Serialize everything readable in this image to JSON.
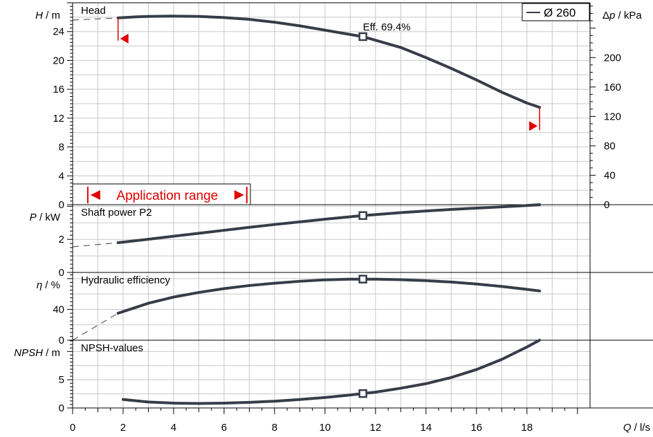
{
  "chart_data": {
    "type": "line",
    "x_axis": {
      "label_var": "Q",
      "label_unit": "l/s",
      "range": [
        0,
        20.5
      ],
      "ticks": [
        0,
        2,
        4,
        6,
        8,
        10,
        12,
        14,
        16,
        18
      ],
      "tick_labels": [
        "0",
        "2",
        "4",
        "6",
        "8",
        "10",
        "12",
        "14",
        "16",
        "18"
      ]
    },
    "legend": {
      "text": "Ø 260",
      "placement": "top-right"
    },
    "application_range": {
      "label": "Application range",
      "x_min": 0.6,
      "x_max": 6.9
    },
    "operating_point": {
      "q": 11.5,
      "annotation": "Eff.  69.4%"
    },
    "panels": [
      {
        "id": "head",
        "title": "Head",
        "ylabel_var": "H",
        "ylabel_unit": "m",
        "ylim": [
          0,
          28
        ],
        "yticks": [
          0,
          4,
          8,
          12,
          16,
          20,
          24
        ],
        "ytick_labels": [
          "0",
          "4",
          "8",
          "12",
          "16",
          "20",
          "24"
        ],
        "secondary_axis": {
          "label_var": "Δp",
          "label_unit": "kPa",
          "ticks_m": [
            0,
            4.08,
            8.16,
            12.24,
            16.32,
            20.39
          ],
          "tick_labels": [
            "0",
            "40",
            "80",
            "120",
            "160",
            "200"
          ]
        },
        "series": [
          {
            "x": [
              1.8,
              2.5,
              3,
              4,
              5,
              6,
              7,
              8,
              9,
              10,
              11,
              11.5,
              12,
              13,
              14,
              15,
              16,
              17,
              18,
              18.5
            ],
            "y": [
              25.9,
              26.05,
              26.1,
              26.15,
              26.1,
              25.95,
              25.7,
              25.3,
              24.8,
              24.2,
              23.6,
              23.3,
              22.8,
              21.8,
              20.4,
              18.9,
              17.3,
              15.6,
              14.1,
              13.5
            ]
          }
        ],
        "extension": {
          "x": [
            0,
            1.8
          ],
          "y": [
            25.6,
            25.9
          ]
        }
      },
      {
        "id": "power",
        "title": "Shaft power P2",
        "ylabel_var": "P",
        "ylabel_unit": "kW",
        "ylim": [
          0,
          4.1
        ],
        "yticks": [
          0,
          2
        ],
        "ytick_labels": [
          "0",
          "2"
        ],
        "series": [
          {
            "x": [
              1.8,
              3,
              4,
              5,
              6,
              7,
              8,
              9,
              10,
              11,
              11.5,
              12,
              13,
              14,
              15,
              16,
              17,
              18,
              18.5
            ],
            "y": [
              1.8,
              2.01,
              2.19,
              2.37,
              2.55,
              2.73,
              2.9,
              3.06,
              3.22,
              3.37,
              3.44,
              3.5,
              3.62,
              3.72,
              3.81,
              3.89,
              3.97,
              4.05,
              4.1
            ]
          }
        ],
        "extension": {
          "x": [
            0,
            1.8
          ],
          "y": [
            1.55,
            1.8
          ]
        }
      },
      {
        "id": "efficiency",
        "title": "Hydraulic efficiency",
        "ylabel_var": "η",
        "ylabel_unit": "%",
        "ylim": [
          0,
          88
        ],
        "yticks": [
          0,
          40
        ],
        "ytick_labels": [
          "0",
          "40"
        ],
        "series": [
          {
            "x": [
              1.8,
              3,
              4,
              5,
              6,
              7,
              8,
              9,
              10,
              11,
              11.5,
              12,
              13,
              14,
              15,
              16,
              17,
              18,
              18.5
            ],
            "y": [
              35,
              48,
              56,
              62,
              67,
              71,
              74,
              76.5,
              78.4,
              79.2,
              79.3,
              79.2,
              78.6,
              77.3,
              75.5,
              73,
              69.8,
              66,
              64
            ]
          }
        ],
        "extension": {
          "x": [
            0,
            1.8
          ],
          "y": [
            0,
            35
          ]
        }
      },
      {
        "id": "npsh",
        "title": "NPSH-values",
        "ylabel_var": "NPSH",
        "ylabel_unit": "m",
        "ylim": [
          0,
          12
        ],
        "yticks": [
          0,
          5
        ],
        "ytick_labels": [
          "0",
          "5"
        ],
        "series": [
          {
            "x": [
              2,
              3,
              4,
              5,
              6,
              7,
              8,
              9,
              10,
              11,
              11.5,
              12,
              13,
              14,
              15,
              16,
              17,
              18,
              18.5
            ],
            "y": [
              1.5,
              1.05,
              0.85,
              0.8,
              0.85,
              1.0,
              1.2,
              1.5,
              1.85,
              2.3,
              2.55,
              2.8,
              3.5,
              4.3,
              5.4,
              6.8,
              8.6,
              10.8,
              12.0
            ]
          }
        ]
      }
    ]
  }
}
